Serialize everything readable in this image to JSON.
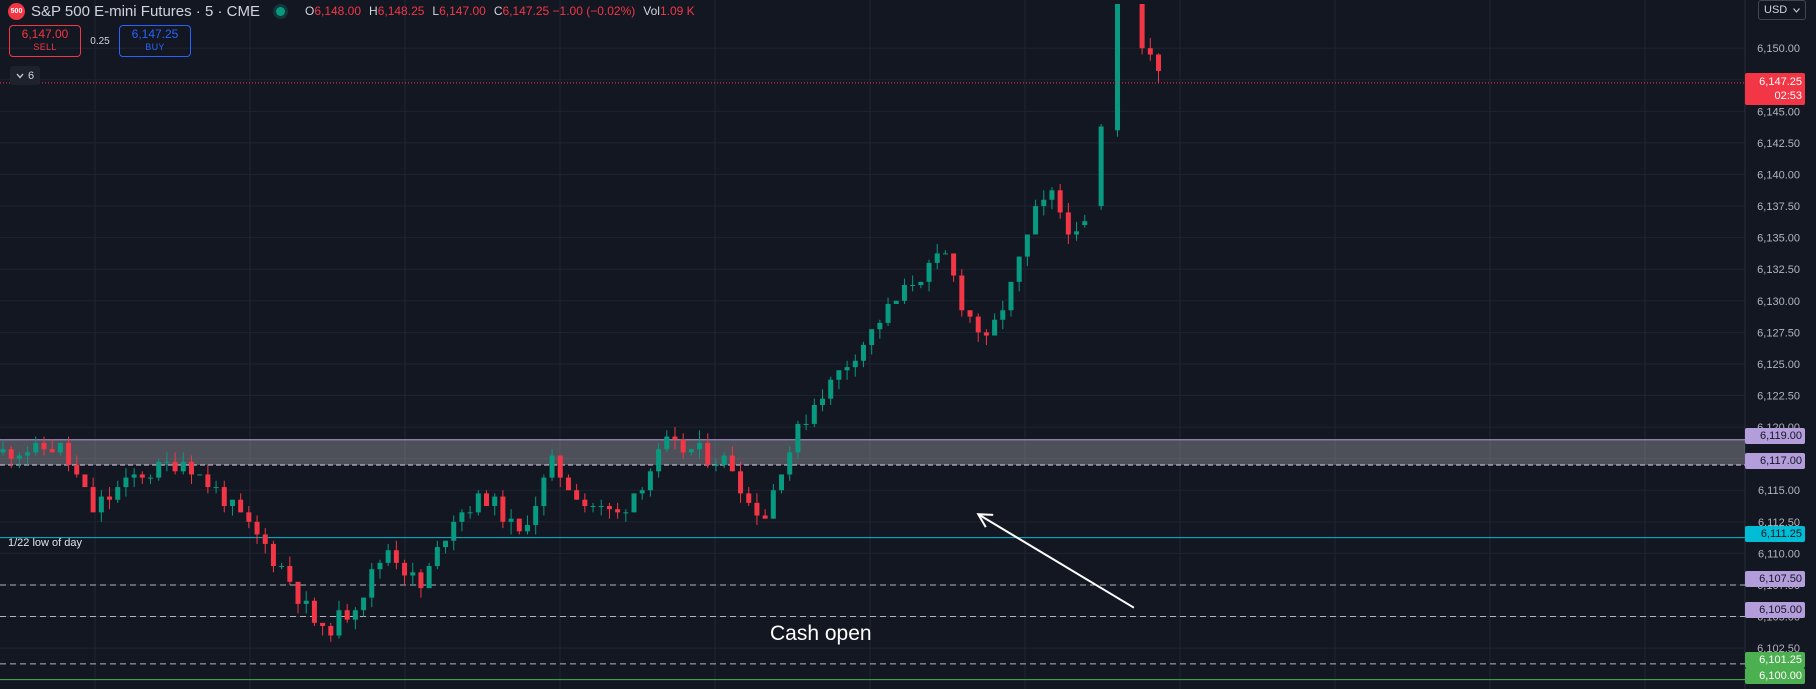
{
  "header": {
    "logo_text": "500",
    "symbol_title": "S&P 500 E-mini Futures · 5 · CME",
    "ohlc": [
      {
        "key": "O",
        "value": "6,148.00"
      },
      {
        "key": "H",
        "value": "6,148.25"
      },
      {
        "key": "L",
        "value": "6,147.00"
      },
      {
        "key": "C",
        "value": "6,147.25 −1.00 (−0.02%)"
      },
      {
        "key": "Vol",
        "value": "1.09 K"
      }
    ],
    "status_color": "#089981"
  },
  "trade": {
    "sell_price": "6,147.00",
    "sell_label": "SELL",
    "spread": "0.25",
    "buy_price": "6,147.25",
    "buy_label": "BUY"
  },
  "indicators_toggle": {
    "icon": "chevron-down-icon",
    "count": "6"
  },
  "currency": {
    "label": "USD"
  },
  "axis_labels": {
    "last_price": "6,147.25",
    "countdown": "02:53",
    "level_6119": "6,119.00",
    "level_6117": "6,117.00",
    "level_61113": "6,111.25",
    "level_6107": "6,107.50",
    "level_6105": "6,105.00",
    "level_61013": "6,101.25",
    "level_6100": "6,100.00"
  },
  "annotations": {
    "low_of_day": "1/22 low of day",
    "cash_open": "Cash open"
  },
  "colors": {
    "background": "#131722",
    "up": "#089981",
    "down": "#f23645",
    "zone": "#b39ddb",
    "low_of_day": "#00bcd4",
    "support": "#4caf50"
  },
  "chart_data": {
    "type": "candlestick",
    "ylim": [
      6099.5,
      6153.5
    ],
    "y_ticks": [
      "6,150.00",
      "6,147.50",
      "6,145.00",
      "6,142.50",
      "6,140.00",
      "6,137.50",
      "6,135.00",
      "6,132.50",
      "6,130.00",
      "6,127.50",
      "6,125.00",
      "6,122.50",
      "6,120.00",
      "6,117.50",
      "6,115.00",
      "6,112.50",
      "6,110.00",
      "6,107.50",
      "6,105.00",
      "6,102.50"
    ],
    "y_tick_values": [
      6150,
      6147.5,
      6145,
      6142.5,
      6140,
      6137.5,
      6135,
      6132.5,
      6130,
      6127.5,
      6125,
      6122.5,
      6120,
      6117.5,
      6115,
      6112.5,
      6110,
      6107.5,
      6105,
      6102.5
    ],
    "bar_count": 151,
    "last_price": 6147.25,
    "zone": [
      6117,
      6119
    ],
    "levels": [
      {
        "price": 6111.25,
        "style": "solid",
        "color": "#00bcd4"
      },
      {
        "price": 6107.5,
        "style": "dashed",
        "color": "#b2b5be"
      },
      {
        "price": 6105.0,
        "style": "dashed",
        "color": "#b2b5be"
      },
      {
        "price": 6101.25,
        "style": "dashed",
        "color": "#b2b5be"
      },
      {
        "price": 6100.0,
        "style": "solid",
        "color": "#4caf50"
      }
    ],
    "keypoints": [
      [
        0,
        6118.0
      ],
      [
        8,
        6118.3
      ],
      [
        12,
        6113.5
      ],
      [
        17,
        6116.0
      ],
      [
        23,
        6117.5
      ],
      [
        27,
        6115.0
      ],
      [
        35,
        6109.0
      ],
      [
        40,
        6103.5
      ],
      [
        44,
        6106.0
      ],
      [
        48,
        6110.5
      ],
      [
        52,
        6107.2
      ],
      [
        56,
        6113.0
      ],
      [
        60,
        6114.5
      ],
      [
        64,
        6111.5
      ],
      [
        68,
        6117.0
      ],
      [
        72,
        6114.0
      ],
      [
        76,
        6113.0
      ],
      [
        82,
        6118.5
      ],
      [
        86,
        6118.0
      ],
      [
        90,
        6117.0
      ],
      [
        92,
        6114.0
      ],
      [
        94,
        6113.0
      ],
      [
        96,
        6117.0
      ],
      [
        98,
        6119.5
      ],
      [
        100,
        6122.0
      ],
      [
        104,
        6125.0
      ],
      [
        108,
        6128.5
      ],
      [
        112,
        6131.5
      ],
      [
        116,
        6133.5
      ],
      [
        118,
        6130.0
      ],
      [
        121,
        6126.5
      ],
      [
        124,
        6131.0
      ],
      [
        127,
        6137.0
      ],
      [
        129,
        6138.2
      ],
      [
        133,
        6133.5
      ],
      [
        136,
        6130.5
      ],
      [
        140,
        6134.5
      ],
      [
        143,
        6135.5
      ],
      [
        145,
        6137.0
      ],
      [
        147,
        6135.0
      ],
      [
        149,
        6134.0
      ],
      [
        151,
        6137.5
      ]
    ],
    "overrides": [
      {
        "i": 132,
        "o": 6136.0,
        "h": 6136.8,
        "l": 6135.8,
        "c": 6136.3
      },
      {
        "i": 134,
        "o": 6137.5,
        "h": 6144.0,
        "l": 6137.2,
        "c": 6143.8
      },
      {
        "i": 136,
        "o": 6143.5,
        "h": 6153.5,
        "l": 6143.0,
        "c": 6153.5
      },
      {
        "i": 139,
        "o": 6153.5,
        "h": 6153.5,
        "l": 6149.5,
        "c": 6150.0
      },
      {
        "i": 140,
        "o": 6150.0,
        "h": 6150.8,
        "l": 6149.0,
        "c": 6149.5
      },
      {
        "i": 141,
        "o": 6149.5,
        "h": 6149.6,
        "l": 6147.2,
        "c": 6148.2
      }
    ],
    "annotation_arrow": {
      "from": [
        138,
        6105.7
      ],
      "to": [
        119,
        6113.1
      ]
    }
  }
}
